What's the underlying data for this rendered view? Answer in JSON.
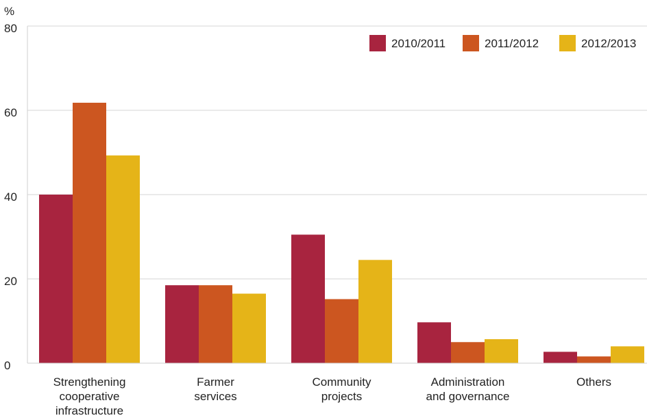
{
  "chart_data": {
    "type": "bar",
    "ylabel": "%",
    "ylim": [
      0,
      80
    ],
    "yticks": [
      0,
      20,
      40,
      60,
      80
    ],
    "grid": true,
    "legend_position": "top-right",
    "categories": [
      [
        "Strengthening",
        "cooperative",
        "infrastructure"
      ],
      [
        "Farmer",
        "services"
      ],
      [
        "Community",
        "projects"
      ],
      [
        "Administration",
        "and governance"
      ],
      [
        "Others"
      ]
    ],
    "series": [
      {
        "name": "2010/2011",
        "color": "#a8243f",
        "values": [
          40,
          18.5,
          30.5,
          9.7,
          2.7
        ]
      },
      {
        "name": "2011/2012",
        "color": "#cc5620",
        "values": [
          61.8,
          18.5,
          15.2,
          5.0,
          1.6
        ]
      },
      {
        "name": "2012/2013",
        "color": "#e5b418",
        "values": [
          49.3,
          16.5,
          24.5,
          5.7,
          4.0
        ]
      }
    ]
  }
}
